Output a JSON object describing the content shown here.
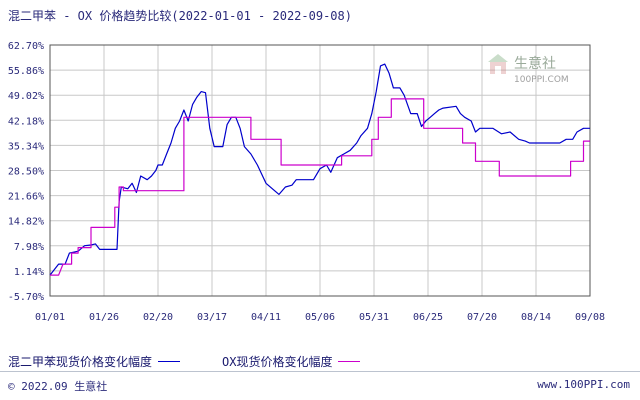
{
  "header": {
    "title": "混二甲苯 - OX 价格趋势比较(2022-01-01 - 2022-09-08)"
  },
  "watermark": {
    "brand": "生意社",
    "site": "100PPI.COM"
  },
  "legend": {
    "xylene": "混二甲苯现货价格变化幅度",
    "ox": "OX现货价格变化幅度"
  },
  "footer": {
    "left": "© 2022.09 生意社",
    "right": "www.100PPI.com"
  },
  "colors": {
    "xylene": "#0000cc",
    "ox": "#cc00cc",
    "grid": "#c8c8c8",
    "axis": "#555555",
    "text": "#2a2a7a"
  },
  "chart_data": {
    "type": "line",
    "title": "混二甲苯 - OX 价格趋势比较(2022-01-01 - 2022-09-08)",
    "xlabel": "",
    "ylabel": "",
    "x_ticks": [
      "01/01",
      "01/26",
      "02/20",
      "03/17",
      "04/11",
      "05/06",
      "05/31",
      "06/25",
      "07/20",
      "08/14",
      "09/08"
    ],
    "y_ticks": [
      "62.70%",
      "55.86%",
      "49.02%",
      "42.18%",
      "35.34%",
      "28.50%",
      "21.66%",
      "14.82%",
      "7.98%",
      "1.14%",
      "-5.70%"
    ],
    "ylim": [
      -5.7,
      62.7
    ],
    "xlim": [
      "2022-01-01",
      "2022-09-08"
    ],
    "grid": true,
    "legend_position": "bottom",
    "series": [
      {
        "name": "混二甲苯现货价格变化幅度",
        "color": "#0000cc",
        "points": [
          [
            "2022-01-01",
            0
          ],
          [
            "2022-01-03",
            1.5
          ],
          [
            "2022-01-05",
            3
          ],
          [
            "2022-01-08",
            3
          ],
          [
            "2022-01-10",
            6
          ],
          [
            "2022-01-14",
            6.5
          ],
          [
            "2022-01-17",
            8
          ],
          [
            "2022-01-20",
            8.2
          ],
          [
            "2022-01-22",
            8.5
          ],
          [
            "2022-01-24",
            7
          ],
          [
            "2022-01-30",
            7
          ],
          [
            "2022-02-01",
            7
          ],
          [
            "2022-02-02",
            20
          ],
          [
            "2022-02-03",
            24
          ],
          [
            "2022-02-06",
            23.5
          ],
          [
            "2022-02-08",
            25
          ],
          [
            "2022-02-10",
            22.5
          ],
          [
            "2022-02-12",
            27
          ],
          [
            "2022-02-15",
            26
          ],
          [
            "2022-02-17",
            27
          ],
          [
            "2022-02-19",
            28.5
          ],
          [
            "2022-02-20",
            30
          ],
          [
            "2022-02-22",
            30
          ],
          [
            "2022-02-24",
            33
          ],
          [
            "2022-02-26",
            36
          ],
          [
            "2022-02-28",
            40
          ],
          [
            "2022-03-02",
            42
          ],
          [
            "2022-03-04",
            45
          ],
          [
            "2022-03-06",
            42
          ],
          [
            "2022-03-08",
            46.5
          ],
          [
            "2022-03-10",
            48.5
          ],
          [
            "2022-03-12",
            50
          ],
          [
            "2022-03-14",
            49.7
          ],
          [
            "2022-03-16",
            40
          ],
          [
            "2022-03-18",
            35
          ],
          [
            "2022-03-22",
            35
          ],
          [
            "2022-03-24",
            41
          ],
          [
            "2022-03-26",
            43
          ],
          [
            "2022-03-28",
            43
          ],
          [
            "2022-03-30",
            40
          ],
          [
            "2022-04-01",
            35
          ],
          [
            "2022-04-04",
            33
          ],
          [
            "2022-04-07",
            30
          ],
          [
            "2022-04-11",
            25
          ],
          [
            "2022-04-15",
            23
          ],
          [
            "2022-04-17",
            22
          ],
          [
            "2022-04-20",
            24
          ],
          [
            "2022-04-23",
            24.5
          ],
          [
            "2022-04-25",
            26
          ],
          [
            "2022-04-30",
            26
          ],
          [
            "2022-05-03",
            26
          ],
          [
            "2022-05-06",
            29
          ],
          [
            "2022-05-09",
            30
          ],
          [
            "2022-05-11",
            28
          ],
          [
            "2022-05-14",
            32
          ],
          [
            "2022-05-17",
            33
          ],
          [
            "2022-05-20",
            34
          ],
          [
            "2022-05-23",
            36
          ],
          [
            "2022-05-25",
            38
          ],
          [
            "2022-05-28",
            40
          ],
          [
            "2022-05-30",
            44
          ],
          [
            "2022-06-01",
            50
          ],
          [
            "2022-06-03",
            57
          ],
          [
            "2022-06-05",
            57.5
          ],
          [
            "2022-06-07",
            55
          ],
          [
            "2022-06-09",
            51
          ],
          [
            "2022-06-12",
            51
          ],
          [
            "2022-06-14",
            49
          ],
          [
            "2022-06-17",
            44
          ],
          [
            "2022-06-20",
            44
          ],
          [
            "2022-06-22",
            40.5
          ],
          [
            "2022-06-24",
            42
          ],
          [
            "2022-06-26",
            43
          ],
          [
            "2022-06-28",
            44
          ],
          [
            "2022-06-30",
            45
          ],
          [
            "2022-07-02",
            45.5
          ],
          [
            "2022-07-08",
            46
          ],
          [
            "2022-07-10",
            44
          ],
          [
            "2022-07-12",
            43
          ],
          [
            "2022-07-15",
            42
          ],
          [
            "2022-07-17",
            39
          ],
          [
            "2022-07-19",
            40
          ],
          [
            "2022-07-25",
            40
          ],
          [
            "2022-07-29",
            38.5
          ],
          [
            "2022-08-02",
            39
          ],
          [
            "2022-08-06",
            37
          ],
          [
            "2022-08-09",
            36.5
          ],
          [
            "2022-08-11",
            36
          ],
          [
            "2022-08-25",
            36
          ],
          [
            "2022-08-28",
            37
          ],
          [
            "2022-08-31",
            37
          ],
          [
            "2022-09-02",
            39
          ],
          [
            "2022-09-05",
            40
          ],
          [
            "2022-09-08",
            40
          ]
        ]
      },
      {
        "name": "OX现货价格变化幅度",
        "color": "#cc00cc",
        "points": [
          [
            "2022-01-01",
            0
          ],
          [
            "2022-01-05",
            0
          ],
          [
            "2022-01-07",
            3
          ],
          [
            "2022-01-11",
            3
          ],
          [
            "2022-01-11",
            6
          ],
          [
            "2022-01-14",
            6
          ],
          [
            "2022-01-14",
            7.5
          ],
          [
            "2022-01-20",
            7.5
          ],
          [
            "2022-01-20",
            13
          ],
          [
            "2022-01-31",
            13
          ],
          [
            "2022-01-31",
            18.5
          ],
          [
            "2022-02-02",
            18.5
          ],
          [
            "2022-02-02",
            24
          ],
          [
            "2022-02-04",
            24
          ],
          [
            "2022-02-04",
            23
          ],
          [
            "2022-03-04",
            23
          ],
          [
            "2022-03-04",
            43
          ],
          [
            "2022-03-31",
            43
          ],
          [
            "2022-04-04",
            43
          ],
          [
            "2022-04-04",
            37
          ],
          [
            "2022-04-18",
            37
          ],
          [
            "2022-04-18",
            30
          ],
          [
            "2022-05-16",
            30
          ],
          [
            "2022-05-16",
            32.5
          ],
          [
            "2022-05-30",
            32.5
          ],
          [
            "2022-05-30",
            37
          ],
          [
            "2022-06-02",
            37
          ],
          [
            "2022-06-02",
            43
          ],
          [
            "2022-06-08",
            43
          ],
          [
            "2022-06-08",
            48
          ],
          [
            "2022-06-23",
            48
          ],
          [
            "2022-06-23",
            40
          ],
          [
            "2022-07-11",
            40
          ],
          [
            "2022-07-11",
            36
          ],
          [
            "2022-07-17",
            36
          ],
          [
            "2022-07-17",
            31
          ],
          [
            "2022-07-28",
            31
          ],
          [
            "2022-07-28",
            27
          ],
          [
            "2022-08-30",
            27
          ],
          [
            "2022-08-30",
            31
          ],
          [
            "2022-09-05",
            31
          ],
          [
            "2022-09-05",
            36.5
          ],
          [
            "2022-09-08",
            36.5
          ]
        ]
      }
    ]
  }
}
